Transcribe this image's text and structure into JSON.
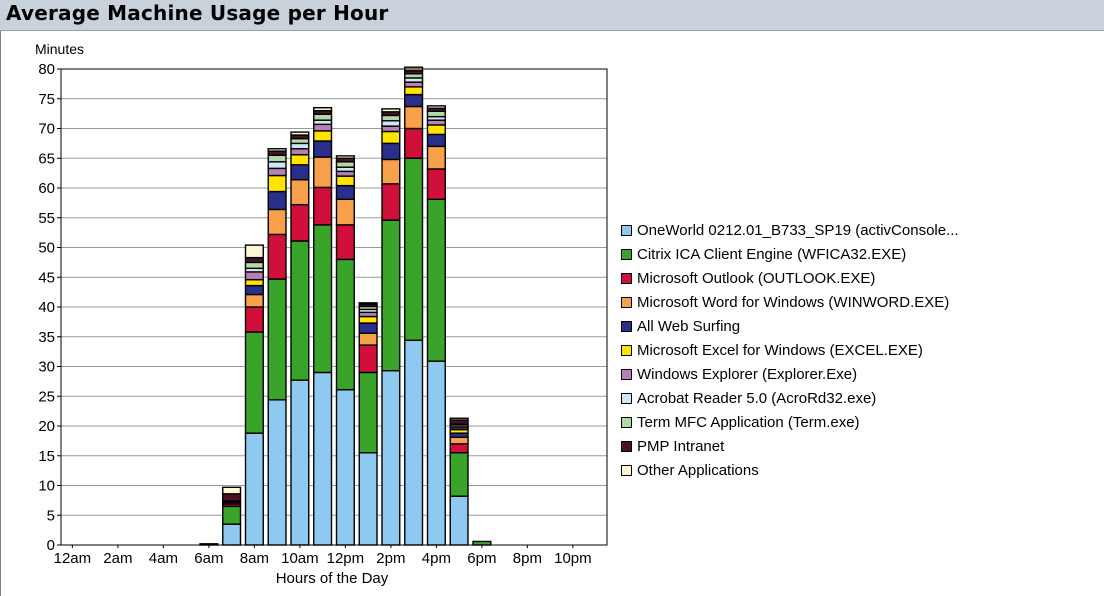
{
  "window": {
    "title": "Average Machine Usage per Hour"
  },
  "chart_data": {
    "type": "bar",
    "stacked": true,
    "title": "Average Machine Usage per Hour",
    "xlabel": "Hours of the Day",
    "ylabel": "Minutes",
    "ylim": [
      0,
      80
    ],
    "yticks": [
      0,
      5,
      10,
      15,
      20,
      25,
      30,
      35,
      40,
      45,
      50,
      55,
      60,
      65,
      70,
      75,
      80
    ],
    "xtick_labels": [
      "12am",
      "2am",
      "4am",
      "6am",
      "8am",
      "10am",
      "12pm",
      "2pm",
      "4pm",
      "6pm",
      "8pm",
      "10pm"
    ],
    "legend_position": "right",
    "grid": true,
    "categories": [
      "12am",
      "1am",
      "2am",
      "3am",
      "4am",
      "5am",
      "6am",
      "7am",
      "8am",
      "9am",
      "10am",
      "11am",
      "12pm",
      "1pm",
      "2pm",
      "3pm",
      "4pm",
      "5pm",
      "6pm",
      "7pm",
      "8pm",
      "9pm",
      "10pm",
      "11pm"
    ],
    "series": [
      {
        "name": "OneWorld 0212.01_B733_SP19 (activConsole...",
        "color": "#8ec9f0",
        "values": [
          0,
          0,
          0,
          0,
          0,
          0,
          0,
          3.5,
          18.8,
          24.4,
          27.7,
          29.0,
          26.1,
          15.5,
          29.3,
          34.4,
          30.9,
          8.2,
          0,
          0,
          0,
          0,
          0,
          0
        ]
      },
      {
        "name": "Citrix ICA Client Engine (WFICA32.EXE)",
        "color": "#3aa32a",
        "values": [
          0,
          0,
          0,
          0,
          0,
          0,
          0.2,
          3.0,
          17.0,
          20.3,
          23.4,
          24.8,
          21.9,
          13.5,
          25.3,
          30.6,
          27.2,
          7.3,
          0.6,
          0,
          0,
          0,
          0,
          0
        ]
      },
      {
        "name": "Microsoft Outlook (OUTLOOK.EXE)",
        "color": "#d0103a",
        "values": [
          0,
          0,
          0,
          0,
          0,
          0,
          0,
          0.4,
          4.2,
          7.5,
          6.1,
          6.3,
          5.8,
          4.6,
          6.1,
          5.0,
          5.1,
          1.5,
          0,
          0,
          0,
          0,
          0,
          0
        ]
      },
      {
        "name": "Microsoft Word for Windows (WINWORD.EXE)",
        "color": "#f7a14a",
        "values": [
          0,
          0,
          0,
          0,
          0,
          0,
          0,
          0,
          2.1,
          4.2,
          4.2,
          5.1,
          4.3,
          2.0,
          4.1,
          3.7,
          3.8,
          1.1,
          0,
          0,
          0,
          0,
          0,
          0
        ]
      },
      {
        "name": "All Web Surfing",
        "color": "#2b2f8c",
        "values": [
          0,
          0,
          0,
          0,
          0,
          0,
          0,
          0.3,
          1.5,
          3.0,
          2.5,
          2.7,
          2.3,
          1.7,
          2.7,
          2.0,
          2.0,
          0.7,
          0,
          0,
          0,
          0,
          0,
          0
        ]
      },
      {
        "name": "Microsoft Excel for Windows (EXCEL.EXE)",
        "color": "#ffe400",
        "values": [
          0,
          0,
          0,
          0,
          0,
          0,
          0,
          0,
          1.0,
          2.7,
          1.7,
          1.7,
          1.6,
          1.1,
          2.0,
          1.3,
          1.6,
          0.6,
          0,
          0,
          0,
          0,
          0,
          0
        ]
      },
      {
        "name": "Windows Explorer (Explorer.Exe)",
        "color": "#b87fb6",
        "values": [
          0,
          0,
          0,
          0,
          0,
          0,
          0,
          0,
          1.3,
          1.2,
          1.0,
          1.1,
          0.8,
          0.7,
          0.9,
          0.8,
          0.8,
          0.3,
          0,
          0,
          0,
          0,
          0,
          0
        ]
      },
      {
        "name": "Acrobat Reader 5.0 (AcroRd32.exe)",
        "color": "#cfe7f5",
        "values": [
          0,
          0,
          0,
          0,
          0,
          0,
          0,
          0,
          0.6,
          1.1,
          0.9,
          0.7,
          0.7,
          0.5,
          0.9,
          0.7,
          0.6,
          0.3,
          0,
          0,
          0,
          0,
          0,
          0
        ]
      },
      {
        "name": "Term MFC Application (Term.exe)",
        "color": "#b2d8a8",
        "values": [
          0,
          0,
          0,
          0,
          0,
          0,
          0,
          0.2,
          1.0,
          1.1,
          0.8,
          1.0,
          0.9,
          0.5,
          0.9,
          0.7,
          0.9,
          0.3,
          0,
          0,
          0,
          0,
          0,
          0
        ]
      },
      {
        "name": "PMP Intranet",
        "color": "#4a1222",
        "values": [
          0,
          0,
          0,
          0,
          0,
          0,
          0,
          1.2,
          0.8,
          0.7,
          0.6,
          0.6,
          0.6,
          0.4,
          0.6,
          0.5,
          0.5,
          0.7,
          0,
          0,
          0,
          0,
          0,
          0
        ]
      },
      {
        "name": "Other Applications",
        "color": "#fbf6d4",
        "values": [
          0,
          0,
          0,
          0,
          0,
          0,
          0,
          1.1,
          2.1,
          0.4,
          0.5,
          0.5,
          0.4,
          0.2,
          0.5,
          0.6,
          0.4,
          0.3,
          0,
          0,
          0,
          0,
          0,
          0
        ]
      }
    ]
  }
}
